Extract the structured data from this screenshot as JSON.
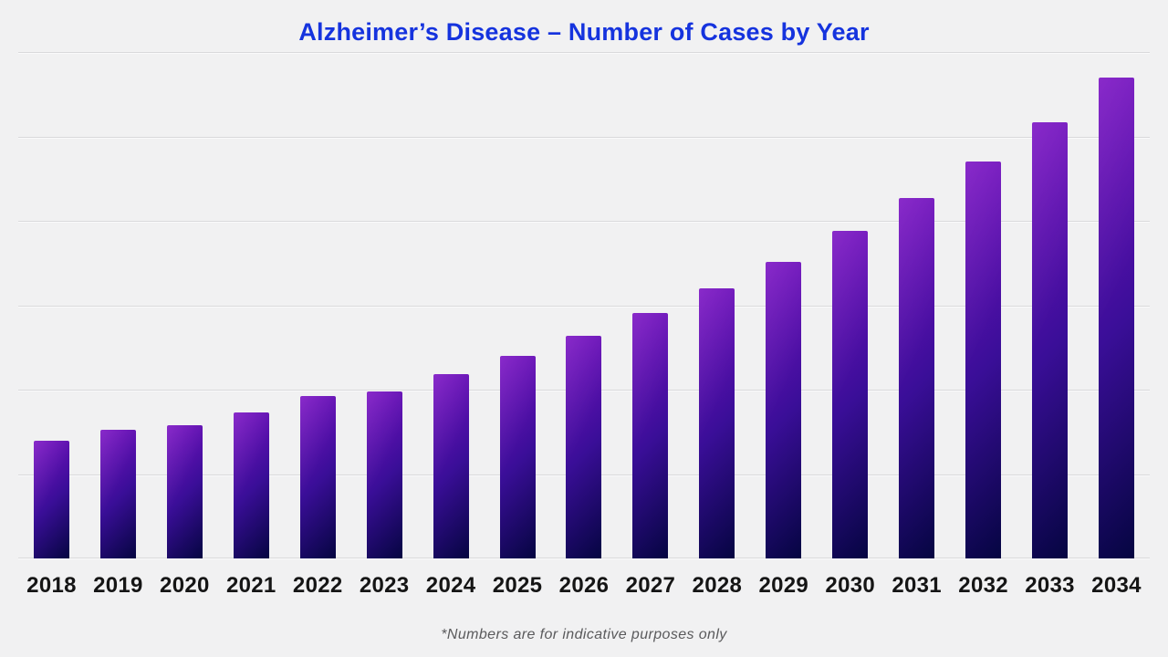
{
  "chart_data": {
    "type": "bar",
    "title": "Alzheimer’s Disease – Number of Cases by Year",
    "categories": [
      "2018",
      "2019",
      "2020",
      "2021",
      "2022",
      "2023",
      "2024",
      "2025",
      "2026",
      "2027",
      "2028",
      "2029",
      "2030",
      "2031",
      "2032",
      "2033",
      "2034"
    ],
    "values": [
      1.39,
      1.53,
      1.58,
      1.73,
      1.92,
      1.98,
      2.18,
      2.4,
      2.64,
      2.91,
      3.2,
      3.51,
      3.88,
      4.27,
      4.7,
      5.17,
      5.7
    ],
    "value_units": "relative units estimated from gridlines (y-axis unlabeled, 1 unit per gridline)",
    "xlabel": "",
    "ylabel": "",
    "ylim": [
      0,
      6
    ],
    "gridline_interval": 1,
    "grid": true,
    "legend": false,
    "footnote": "*Numbers are for indicative purposes only"
  },
  "colors": {
    "background": "#f1f1f2",
    "title": "#1533de",
    "gridline": "#d9d9db",
    "bar_gradient_start": "#7c12c4",
    "bar_gradient_mid": "#3a0e98",
    "bar_gradient_end": "#050541",
    "year_label": "#151515",
    "footnote": "#5a5a5c"
  }
}
